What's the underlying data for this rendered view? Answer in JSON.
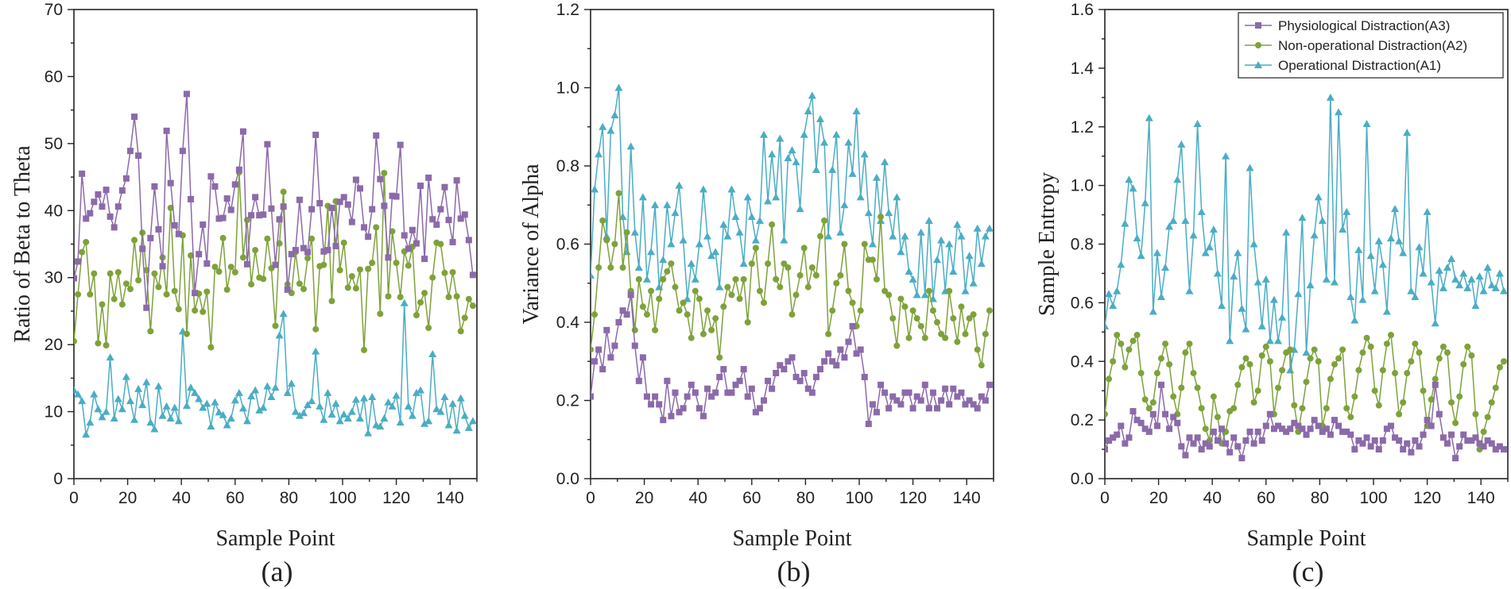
{
  "colors": {
    "physiological": "#8b6aaa",
    "non_operational": "#7ea23a",
    "operational": "#4aadc4",
    "axis": "#222222"
  },
  "legend": [
    {
      "label": "Physiological Distraction(A3)",
      "color": "#8b6aaa",
      "marker": "square"
    },
    {
      "label": "Non-operational Distraction(A2)",
      "color": "#7ea23a",
      "marker": "circle"
    },
    {
      "label": "Operational Distraction(A1)",
      "color": "#4aadc4",
      "marker": "triangle"
    }
  ],
  "chart_data": [
    {
      "type": "line",
      "caption": "(a)",
      "xlabel": "Sample Point",
      "ylabel": "Ratio of Beta to Theta",
      "xlim": [
        0,
        150
      ],
      "ylim": [
        0,
        70
      ],
      "xticks": [
        0,
        20,
        40,
        60,
        80,
        100,
        120,
        140
      ],
      "yticks": [
        0,
        10,
        20,
        30,
        40,
        50,
        60,
        70
      ],
      "x_step": 1.5,
      "series": [
        {
          "name": "Physiological Distraction(A3)",
          "marker": "square",
          "color": "#8b6aaa",
          "values": [
            29.9,
            32.4,
            45.5,
            38.8,
            39.6,
            41.3,
            42.4,
            40.6,
            43.1,
            39.1,
            37.5,
            40.6,
            43.0,
            44.8,
            48.9,
            54.0,
            48.2,
            34.3,
            25.5,
            35.9,
            43.6,
            37.2,
            31.7,
            51.9,
            44.1,
            37.8,
            36.5,
            48.9,
            57.4,
            41.7,
            27.7,
            33.5,
            37.9,
            32.1,
            45.1,
            43.6,
            38.8,
            38.9,
            41.8,
            40.1,
            43.9,
            46.1,
            51.8,
            32.0,
            39.3,
            42.0,
            39.3,
            39.4,
            49.9,
            40.3,
            31.9,
            38.7,
            40.6,
            28.2,
            33.5,
            34.1,
            41.6,
            34.4,
            33.8,
            40.2,
            51.3,
            41.1,
            33.9,
            34.1,
            40.4,
            34.7,
            41.3,
            42.0,
            40.9,
            38.3,
            44.6,
            43.3,
            37.5,
            36.1,
            40.2,
            51.2,
            44.7,
            40.7,
            33.0,
            42.2,
            42.1,
            49.8,
            36.3,
            34.3,
            37.1,
            35.1,
            43.7,
            32.8,
            44.9,
            38.7,
            37.9,
            40.2,
            43.5,
            38.6,
            35.3,
            44.5,
            38.8,
            39.4,
            35.6,
            30.4
          ]
        },
        {
          "name": "Non-operational Distraction(A2)",
          "marker": "circle",
          "color": "#7ea23a",
          "values": [
            20.5,
            27.5,
            33.8,
            35.3,
            27.5,
            30.6,
            20.2,
            26.0,
            19.9,
            30.6,
            26.8,
            30.8,
            26.0,
            29.1,
            28.3,
            35.6,
            29.6,
            36.7,
            31.1,
            22.0,
            30.6,
            28.6,
            33.0,
            27.5,
            40.4,
            28.0,
            25.3,
            36.3,
            21.6,
            33.3,
            25.1,
            27.6,
            24.9,
            27.9,
            19.6,
            31.6,
            30.9,
            35.9,
            28.2,
            31.6,
            30.8,
            45.7,
            33.0,
            38.6,
            29.0,
            34.1,
            30.0,
            29.8,
            35.8,
            31.4,
            22.8,
            35.1,
            42.8,
            29.0,
            27.7,
            33.8,
            29.1,
            28.3,
            32.9,
            35.8,
            22.3,
            31.7,
            31.9,
            40.7,
            26.5,
            41.4,
            31.1,
            35.2,
            28.5,
            30.2,
            28.4,
            31.2,
            19.2,
            31.3,
            32.2,
            37.5,
            24.6,
            45.6,
            27.2,
            36.9,
            32.2,
            27.1,
            33.9,
            31.8,
            34.6,
            24.4,
            26.3,
            27.7,
            22.5,
            30.0,
            35.2,
            35.0,
            30.7,
            27.1,
            30.8,
            27.2,
            22.0,
            24.0,
            26.8,
            25.8
          ]
        },
        {
          "name": "Operational Distraction(A1)",
          "marker": "triangle",
          "color": "#4aadc4",
          "values": [
            13.2,
            12.6,
            11.6,
            6.6,
            8.4,
            12.6,
            10.4,
            9.2,
            10.0,
            18.1,
            9.0,
            11.9,
            10.4,
            15.2,
            11.6,
            8.8,
            13.4,
            11.0,
            14.4,
            8.4,
            7.4,
            13.8,
            9.4,
            10.8,
            9.0,
            10.6,
            8.6,
            22.0,
            10.9,
            13.6,
            12.8,
            11.9,
            10.6,
            11.2,
            7.8,
            11.4,
            9.9,
            9.5,
            8.0,
            9.0,
            11.7,
            12.8,
            10.5,
            8.6,
            12.3,
            13.2,
            10.2,
            10.6,
            13.8,
            12.2,
            13.6,
            21.4,
            24.6,
            12.8,
            14.2,
            10.0,
            9.4,
            9.8,
            11.0,
            11.6,
            19.0,
            10.8,
            8.8,
            12.8,
            9.6,
            11.2,
            8.6,
            9.6,
            9.0,
            10.0,
            11.8,
            9.0,
            12.0,
            6.8,
            12.2,
            8.0,
            7.8,
            9.0,
            11.4,
            10.8,
            12.4,
            8.4,
            26.2,
            10.8,
            9.4,
            12.8,
            13.2,
            8.2,
            8.6,
            18.6,
            10.4,
            10.0,
            12.2,
            8.0,
            11.2,
            7.2,
            12.0,
            9.4,
            7.6,
            8.6
          ]
        }
      ]
    },
    {
      "type": "line",
      "caption": "(b)",
      "xlabel": "Sample Point",
      "ylabel": "Variance of Alpha",
      "xlim": [
        0,
        150
      ],
      "ylim": [
        0,
        1.2
      ],
      "xticks": [
        0,
        20,
        40,
        60,
        80,
        100,
        120,
        140
      ],
      "yticks": [
        0.0,
        0.2,
        0.4,
        0.6,
        0.8,
        1.0,
        1.2
      ],
      "x_step": 1.5,
      "series": [
        {
          "name": "Physiological Distraction(A3)",
          "marker": "square",
          "color": "#8b6aaa",
          "values": [
            0.21,
            0.3,
            0.33,
            0.28,
            0.38,
            0.31,
            0.34,
            0.4,
            0.43,
            0.42,
            0.47,
            0.34,
            0.25,
            0.31,
            0.21,
            0.19,
            0.21,
            0.19,
            0.15,
            0.25,
            0.16,
            0.22,
            0.17,
            0.18,
            0.21,
            0.24,
            0.22,
            0.18,
            0.16,
            0.23,
            0.21,
            0.22,
            0.26,
            0.28,
            0.22,
            0.22,
            0.24,
            0.25,
            0.28,
            0.21,
            0.23,
            0.17,
            0.18,
            0.2,
            0.25,
            0.23,
            0.27,
            0.29,
            0.28,
            0.3,
            0.31,
            0.26,
            0.25,
            0.27,
            0.23,
            0.22,
            0.26,
            0.28,
            0.3,
            0.32,
            0.3,
            0.29,
            0.33,
            0.31,
            0.35,
            0.39,
            0.32,
            0.33,
            0.26,
            0.14,
            0.19,
            0.17,
            0.24,
            0.22,
            0.18,
            0.21,
            0.2,
            0.19,
            0.22,
            0.22,
            0.18,
            0.21,
            0.2,
            0.24,
            0.18,
            0.22,
            0.18,
            0.2,
            0.23,
            0.19,
            0.23,
            0.21,
            0.22,
            0.19,
            0.2,
            0.19,
            0.18,
            0.21,
            0.2,
            0.24
          ]
        },
        {
          "name": "Non-operational Distraction(A2)",
          "marker": "circle",
          "color": "#7ea23a",
          "values": [
            0.33,
            0.42,
            0.54,
            0.66,
            0.61,
            0.54,
            0.6,
            0.73,
            0.54,
            0.63,
            0.48,
            0.38,
            0.51,
            0.44,
            0.42,
            0.48,
            0.38,
            0.46,
            0.51,
            0.53,
            0.55,
            0.49,
            0.43,
            0.45,
            0.42,
            0.36,
            0.48,
            0.46,
            0.37,
            0.43,
            0.38,
            0.41,
            0.31,
            0.44,
            0.49,
            0.47,
            0.51,
            0.46,
            0.51,
            0.4,
            0.55,
            0.59,
            0.48,
            0.45,
            0.55,
            0.65,
            0.51,
            0.49,
            0.55,
            0.54,
            0.42,
            0.47,
            0.52,
            0.59,
            0.49,
            0.54,
            0.52,
            0.62,
            0.66,
            0.37,
            0.43,
            0.5,
            0.52,
            0.6,
            0.48,
            0.45,
            0.39,
            0.43,
            0.6,
            0.56,
            0.56,
            0.51,
            0.67,
            0.48,
            0.47,
            0.41,
            0.34,
            0.46,
            0.44,
            0.36,
            0.43,
            0.41,
            0.39,
            0.36,
            0.48,
            0.43,
            0.4,
            0.37,
            0.36,
            0.48,
            0.41,
            0.35,
            0.44,
            0.37,
            0.41,
            0.42,
            0.33,
            0.29,
            0.37,
            0.43
          ]
        },
        {
          "name": "Operational Distraction(A1)",
          "marker": "triangle",
          "color": "#4aadc4",
          "values": [
            0.52,
            0.74,
            0.83,
            0.9,
            0.62,
            0.89,
            0.93,
            1.0,
            0.67,
            0.58,
            0.85,
            0.63,
            0.54,
            0.72,
            0.51,
            0.58,
            0.7,
            0.49,
            0.56,
            0.7,
            0.6,
            0.68,
            0.75,
            0.61,
            0.46,
            0.55,
            0.51,
            0.6,
            0.74,
            0.62,
            0.57,
            0.58,
            0.49,
            0.65,
            0.62,
            0.74,
            0.67,
            0.63,
            0.55,
            0.72,
            0.67,
            0.61,
            0.66,
            0.88,
            0.71,
            0.83,
            0.72,
            0.87,
            0.61,
            0.82,
            0.84,
            0.81,
            0.69,
            0.88,
            0.94,
            0.98,
            0.79,
            0.92,
            0.86,
            0.62,
            0.79,
            0.88,
            0.63,
            0.7,
            0.86,
            0.78,
            0.94,
            0.72,
            0.83,
            0.68,
            0.6,
            0.77,
            0.66,
            0.81,
            0.68,
            0.62,
            0.72,
            0.58,
            0.62,
            0.53,
            0.51,
            0.47,
            0.63,
            0.47,
            0.66,
            0.46,
            0.56,
            0.61,
            0.48,
            0.6,
            0.53,
            0.65,
            0.62,
            0.48,
            0.57,
            0.5,
            0.64,
            0.55,
            0.62,
            0.64
          ]
        }
      ]
    },
    {
      "type": "line",
      "caption": "(c)",
      "xlabel": "Sample Point",
      "ylabel": "Sample Entropy",
      "xlim": [
        0,
        150
      ],
      "ylim": [
        0,
        1.6
      ],
      "xticks": [
        0,
        20,
        40,
        60,
        80,
        100,
        120,
        140
      ],
      "yticks": [
        0.0,
        0.2,
        0.4,
        0.6,
        0.8,
        1.0,
        1.2,
        1.4,
        1.6
      ],
      "x_step": 1.5,
      "series": [
        {
          "name": "Physiological Distraction(A3)",
          "marker": "square",
          "color": "#8b6aaa",
          "values": [
            0.1,
            0.13,
            0.14,
            0.15,
            0.18,
            0.12,
            0.14,
            0.23,
            0.2,
            0.19,
            0.17,
            0.16,
            0.22,
            0.18,
            0.32,
            0.22,
            0.17,
            0.21,
            0.19,
            0.11,
            0.08,
            0.14,
            0.12,
            0.14,
            0.1,
            0.12,
            0.11,
            0.16,
            0.13,
            0.17,
            0.12,
            0.09,
            0.14,
            0.11,
            0.07,
            0.13,
            0.16,
            0.12,
            0.16,
            0.13,
            0.18,
            0.22,
            0.17,
            0.18,
            0.17,
            0.16,
            0.17,
            0.19,
            0.18,
            0.17,
            0.15,
            0.17,
            0.2,
            0.18,
            0.16,
            0.17,
            0.15,
            0.2,
            0.18,
            0.16,
            0.16,
            0.15,
            0.1,
            0.13,
            0.12,
            0.14,
            0.11,
            0.13,
            0.1,
            0.13,
            0.17,
            0.18,
            0.14,
            0.13,
            0.1,
            0.12,
            0.09,
            0.13,
            0.11,
            0.15,
            0.2,
            0.18,
            0.32,
            0.22,
            0.14,
            0.12,
            0.15,
            0.07,
            0.11,
            0.15,
            0.13,
            0.13,
            0.14,
            0.12,
            0.11,
            0.13,
            0.12,
            0.1,
            0.11,
            0.1
          ]
        },
        {
          "name": "Non-operational Distraction(A2)",
          "marker": "circle",
          "color": "#7ea23a",
          "values": [
            0.22,
            0.34,
            0.4,
            0.49,
            0.46,
            0.38,
            0.44,
            0.47,
            0.49,
            0.36,
            0.27,
            0.24,
            0.26,
            0.36,
            0.41,
            0.46,
            0.39,
            0.28,
            0.22,
            0.31,
            0.43,
            0.46,
            0.36,
            0.31,
            0.24,
            0.17,
            0.13,
            0.28,
            0.21,
            0.12,
            0.16,
            0.23,
            0.24,
            0.32,
            0.38,
            0.41,
            0.39,
            0.26,
            0.3,
            0.42,
            0.45,
            0.4,
            0.22,
            0.31,
            0.37,
            0.43,
            0.44,
            0.25,
            0.16,
            0.24,
            0.33,
            0.41,
            0.44,
            0.4,
            0.18,
            0.24,
            0.34,
            0.39,
            0.41,
            0.44,
            0.24,
            0.21,
            0.28,
            0.37,
            0.43,
            0.48,
            0.45,
            0.3,
            0.25,
            0.37,
            0.46,
            0.49,
            0.36,
            0.22,
            0.26,
            0.36,
            0.4,
            0.46,
            0.43,
            0.3,
            0.18,
            0.27,
            0.34,
            0.41,
            0.45,
            0.43,
            0.26,
            0.19,
            0.28,
            0.39,
            0.45,
            0.42,
            0.22,
            0.1,
            0.16,
            0.21,
            0.26,
            0.31,
            0.38,
            0.4
          ]
        },
        {
          "name": "Operational Distraction(A1)",
          "marker": "triangle",
          "color": "#4aadc4",
          "values": [
            0.52,
            0.63,
            0.59,
            0.64,
            0.73,
            0.87,
            1.02,
            0.99,
            0.82,
            0.76,
            0.94,
            1.23,
            0.57,
            0.77,
            0.62,
            0.72,
            0.86,
            0.88,
            1.02,
            1.14,
            0.88,
            0.64,
            0.83,
            1.21,
            0.91,
            0.77,
            0.79,
            0.85,
            0.7,
            0.59,
            1.1,
            0.47,
            0.69,
            0.77,
            0.58,
            0.51,
            1.06,
            0.8,
            0.67,
            0.52,
            0.68,
            0.47,
            0.61,
            0.47,
            0.55,
            0.84,
            0.37,
            0.44,
            0.63,
            0.89,
            0.43,
            0.66,
            0.83,
            0.96,
            0.88,
            0.68,
            1.3,
            0.67,
            1.25,
            0.85,
            0.91,
            0.62,
            0.54,
            0.78,
            0.61,
            1.21,
            0.76,
            0.64,
            0.81,
            0.73,
            0.57,
            0.82,
            0.92,
            0.81,
            0.77,
            1.18,
            0.64,
            0.62,
            0.79,
            0.7,
            0.91,
            0.67,
            0.53,
            0.71,
            0.65,
            0.72,
            0.75,
            0.68,
            0.66,
            0.7,
            0.65,
            0.68,
            0.59,
            0.69,
            0.64,
            0.72,
            0.66,
            0.65,
            0.7,
            0.64
          ]
        }
      ]
    }
  ]
}
